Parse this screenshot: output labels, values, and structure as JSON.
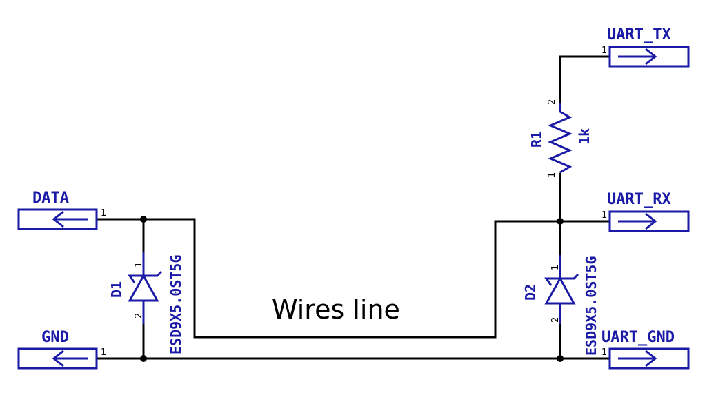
{
  "nets": {
    "data": "DATA",
    "gnd": "GND",
    "uart_tx": "UART_TX",
    "uart_rx": "UART_RX",
    "uart_gnd": "UART_GND"
  },
  "components": {
    "r1": {
      "ref": "R1",
      "value": "1k",
      "pin_top": "2",
      "pin_bottom": "1"
    },
    "d1": {
      "ref": "D1",
      "value": "ESD9X5.0ST5G",
      "pin_top": "1",
      "pin_bottom": "2"
    },
    "d2": {
      "ref": "D2",
      "value": "ESD9X5.0ST5G",
      "pin_top": "1",
      "pin_bottom": "2"
    }
  },
  "connector_pin": "1",
  "annotation": "Wires line",
  "colors": {
    "wire": "#000000",
    "symbol": "#1a1aa6",
    "background": "#ffffff"
  }
}
